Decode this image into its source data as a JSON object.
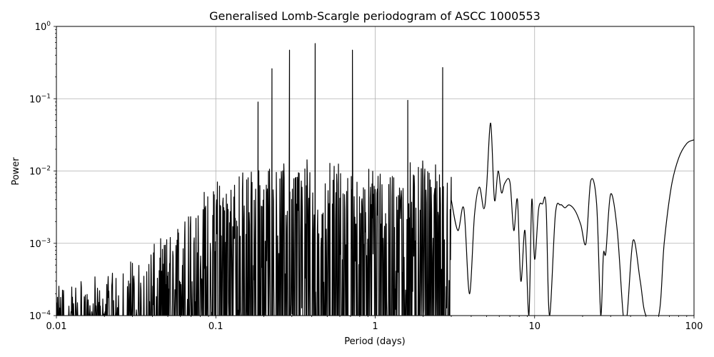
{
  "figure": {
    "title": "Generalised Lomb-Scargle periodogram of ASCC 1000553",
    "xlabel": "Period (days)",
    "ylabel": "Power",
    "line_color": "#000000",
    "grid_color": "#b0b0b0"
  },
  "chart_data": {
    "type": "line",
    "title": "Generalised Lomb-Scargle periodogram of ASCC 1000553",
    "xlabel": "Period (days)",
    "ylabel": "Power",
    "xscale": "log",
    "yscale": "log",
    "xlim": [
      0.01,
      100
    ],
    "ylim": [
      0.0001,
      1
    ],
    "grid": true,
    "xticks": [
      {
        "value": 0.01,
        "label": "0.01"
      },
      {
        "value": 0.1,
        "label": "0.1"
      },
      {
        "value": 1,
        "label": "1"
      },
      {
        "value": 10,
        "label": "10"
      },
      {
        "value": 100,
        "label": "100"
      }
    ],
    "yticks": [
      {
        "value": 0.0001,
        "base": "10",
        "exp": "−4"
      },
      {
        "value": 0.001,
        "base": "10",
        "exp": "−3"
      },
      {
        "value": 0.01,
        "base": "10",
        "exp": "−2"
      },
      {
        "value": 0.1,
        "base": "10",
        "exp": "−1"
      },
      {
        "value": 1,
        "base": "10",
        "exp": "0"
      }
    ],
    "noise_envelope": {
      "description": "dense forest of peaks whose upper envelope rises with period",
      "points": [
        [
          0.01,
          0.00025
        ],
        [
          0.02,
          0.0003
        ],
        [
          0.03,
          0.0006
        ],
        [
          0.05,
          0.001
        ],
        [
          0.07,
          0.003
        ],
        [
          0.1,
          0.006
        ],
        [
          0.15,
          0.008
        ],
        [
          0.2,
          0.01
        ],
        [
          0.3,
          0.012
        ],
        [
          0.5,
          0.012
        ],
        [
          0.8,
          0.01
        ],
        [
          1.0,
          0.008
        ],
        [
          2.0,
          0.012
        ],
        [
          3.0,
          0.008
        ]
      ]
    },
    "peaks": [
      {
        "period": 0.184,
        "power": 0.09
      },
      {
        "period": 0.225,
        "power": 0.26
      },
      {
        "period": 0.29,
        "power": 0.47
      },
      {
        "period": 0.42,
        "power": 0.58
      },
      {
        "period": 0.72,
        "power": 0.47
      },
      {
        "period": 1.6,
        "power": 0.095
      },
      {
        "period": 2.65,
        "power": 0.27
      },
      {
        "period": 5.3,
        "power": 0.046
      }
    ],
    "smooth_series": {
      "description": "resolved long-period structure",
      "points": [
        [
          3.0,
          0.004
        ],
        [
          3.3,
          0.0015
        ],
        [
          3.6,
          0.003
        ],
        [
          3.9,
          0.0002
        ],
        [
          4.2,
          0.0025
        ],
        [
          4.5,
          0.006
        ],
        [
          4.8,
          0.003
        ],
        [
          5.0,
          0.006
        ],
        [
          5.3,
          0.046
        ],
        [
          5.6,
          0.004
        ],
        [
          5.9,
          0.01
        ],
        [
          6.2,
          0.005
        ],
        [
          6.5,
          0.0068
        ],
        [
          7.0,
          0.007
        ],
        [
          7.4,
          0.0015
        ],
        [
          7.8,
          0.004
        ],
        [
          8.2,
          0.0003
        ],
        [
          8.7,
          0.0015
        ],
        [
          9.2,
          0.0001
        ],
        [
          9.6,
          0.004
        ],
        [
          10.0,
          0.0006
        ],
        [
          10.6,
          0.003
        ],
        [
          11.2,
          0.0035
        ],
        [
          11.8,
          0.0033
        ],
        [
          12.4,
          0.0001
        ],
        [
          13.5,
          0.0025
        ],
        [
          14.5,
          0.0034
        ],
        [
          15.5,
          0.0031
        ],
        [
          16.5,
          0.0034
        ],
        [
          18.0,
          0.0028
        ],
        [
          19.5,
          0.0018
        ],
        [
          21.0,
          0.001
        ],
        [
          22.5,
          0.0073
        ],
        [
          24.5,
          0.0035
        ],
        [
          26.0,
          0.0001
        ],
        [
          27.0,
          0.0007
        ],
        [
          28.0,
          0.00075
        ],
        [
          30.0,
          0.0048
        ],
        [
          33.0,
          0.0015
        ],
        [
          36.0,
          0.0001
        ],
        [
          38.0,
          0.0001
        ],
        [
          41.5,
          0.0011
        ],
        [
          46.0,
          0.0003
        ],
        [
          50.0,
          0.0001
        ],
        [
          60.0,
          0.0001
        ],
        [
          65.0,
          0.001
        ],
        [
          72.0,
          0.006
        ],
        [
          80.0,
          0.015
        ],
        [
          90.0,
          0.024
        ],
        [
          100.0,
          0.027
        ]
      ]
    }
  }
}
